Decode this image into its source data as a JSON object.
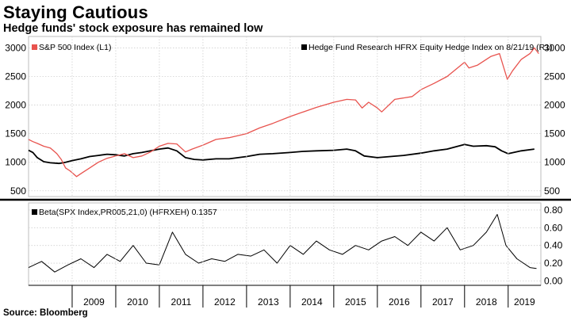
{
  "header": {
    "title": "Staying Cautious",
    "subtitle": "Hedge funds' stock exposure has remained low"
  },
  "footer": {
    "source": "Source: Bloomberg"
  },
  "colors": {
    "hfrx": "#000000",
    "sp500": "#e8534e",
    "grid": "#cfcfcf",
    "divider": "#000000"
  },
  "chart_data": [
    {
      "type": "line",
      "title": "",
      "legend_placement": "top-left",
      "x_tick_labels": [
        "2009",
        "2010",
        "2011",
        "2012",
        "2013",
        "2014",
        "2015",
        "2016",
        "2017",
        "2018",
        "2019"
      ],
      "xlim": [
        2008.0,
        2019.75
      ],
      "left_axis": {
        "ticks": [
          500,
          1000,
          1500,
          2000,
          2500,
          3000
        ],
        "ylim": [
          400,
          3200
        ]
      },
      "right_axis": {
        "ticks": [
          500,
          1000,
          1500,
          2000,
          2500,
          3000
        ],
        "ylim": [
          400,
          3200
        ]
      },
      "grid": true,
      "series": [
        {
          "name": "Hedge Fund Research HFRX Equity Hedge Index on 8/21/19 (R1)",
          "axis": "right",
          "color": "#000000",
          "x": [
            2008.0,
            2008.1,
            2008.2,
            2008.35,
            2008.5,
            2008.7,
            2008.85,
            2009.0,
            2009.2,
            2009.4,
            2009.6,
            2009.8,
            2010.0,
            2010.2,
            2010.4,
            2010.6,
            2010.8,
            2011.0,
            2011.2,
            2011.4,
            2011.6,
            2011.8,
            2012.0,
            2012.3,
            2012.6,
            2013.0,
            2013.3,
            2013.6,
            2014.0,
            2014.3,
            2014.6,
            2015.0,
            2015.3,
            2015.5,
            2015.7,
            2016.0,
            2016.3,
            2016.6,
            2017.0,
            2017.3,
            2017.6,
            2018.0,
            2018.2,
            2018.5,
            2018.7,
            2018.85,
            2019.0,
            2019.3,
            2019.6
          ],
          "y": [
            1210,
            1170,
            1080,
            1010,
            990,
            980,
            1000,
            1030,
            1060,
            1100,
            1120,
            1140,
            1130,
            1110,
            1150,
            1170,
            1200,
            1230,
            1250,
            1200,
            1080,
            1050,
            1040,
            1060,
            1060,
            1100,
            1140,
            1150,
            1170,
            1190,
            1200,
            1210,
            1230,
            1200,
            1110,
            1080,
            1100,
            1120,
            1160,
            1200,
            1230,
            1310,
            1280,
            1290,
            1270,
            1200,
            1150,
            1200,
            1230
          ]
        },
        {
          "name": "S&P 500 Index (L1)",
          "axis": "left",
          "color": "#e8534e",
          "x": [
            2008.0,
            2008.1,
            2008.2,
            2008.35,
            2008.5,
            2008.65,
            2008.75,
            2008.85,
            2008.95,
            2009.1,
            2009.2,
            2009.4,
            2009.6,
            2009.8,
            2010.0,
            2010.2,
            2010.4,
            2010.6,
            2010.8,
            2011.0,
            2011.2,
            2011.4,
            2011.6,
            2011.75,
            2012.0,
            2012.3,
            2012.6,
            2013.0,
            2013.3,
            2013.6,
            2014.0,
            2014.3,
            2014.6,
            2015.0,
            2015.3,
            2015.5,
            2015.65,
            2015.8,
            2016.0,
            2016.1,
            2016.4,
            2016.8,
            2017.0,
            2017.3,
            2017.6,
            2018.0,
            2018.1,
            2018.3,
            2018.6,
            2018.8,
            2018.98,
            2019.1,
            2019.3,
            2019.5,
            2019.6,
            2019.7
          ],
          "y": [
            1400,
            1360,
            1330,
            1280,
            1250,
            1150,
            1050,
            900,
            850,
            750,
            800,
            900,
            1000,
            1070,
            1110,
            1150,
            1080,
            1110,
            1180,
            1280,
            1330,
            1320,
            1180,
            1230,
            1300,
            1400,
            1430,
            1500,
            1600,
            1680,
            1800,
            1880,
            1960,
            2050,
            2100,
            2090,
            1950,
            2050,
            1950,
            1880,
            2100,
            2150,
            2270,
            2380,
            2500,
            2750,
            2650,
            2700,
            2850,
            2900,
            2450,
            2600,
            2800,
            2900,
            3000,
            2900
          ]
        }
      ]
    },
    {
      "type": "line",
      "title": "",
      "legend_placement": "top-left",
      "x_tick_labels": [
        "2009",
        "2010",
        "2011",
        "2012",
        "2013",
        "2014",
        "2015",
        "2016",
        "2017",
        "2018",
        "2019"
      ],
      "xlim": [
        2008.0,
        2019.75
      ],
      "right_axis": {
        "ticks": [
          0.0,
          0.2,
          0.4,
          0.6,
          0.8
        ],
        "tick_labels": [
          "0.00",
          "0.20",
          "0.40",
          "0.60",
          "0.80"
        ],
        "ylim": [
          -0.05,
          0.88
        ]
      },
      "grid": true,
      "series": [
        {
          "name": "Beta(SPX Index,PR005,21,0) (HFRXEH) 0.1357",
          "axis": "right",
          "color": "#000000",
          "x": [
            2008.0,
            2008.3,
            2008.6,
            2008.9,
            2009.2,
            2009.5,
            2009.8,
            2010.1,
            2010.4,
            2010.7,
            2011.0,
            2011.3,
            2011.6,
            2011.9,
            2012.2,
            2012.5,
            2012.8,
            2013.1,
            2013.4,
            2013.7,
            2014.0,
            2014.3,
            2014.6,
            2014.9,
            2015.2,
            2015.5,
            2015.8,
            2016.1,
            2016.4,
            2016.7,
            2017.0,
            2017.3,
            2017.6,
            2017.9,
            2018.2,
            2018.5,
            2018.75,
            2018.95,
            2019.2,
            2019.5,
            2019.65
          ],
          "y": [
            0.15,
            0.22,
            0.1,
            0.18,
            0.25,
            0.15,
            0.3,
            0.22,
            0.4,
            0.2,
            0.18,
            0.55,
            0.3,
            0.2,
            0.25,
            0.22,
            0.3,
            0.28,
            0.35,
            0.2,
            0.4,
            0.3,
            0.45,
            0.35,
            0.3,
            0.4,
            0.35,
            0.45,
            0.5,
            0.4,
            0.55,
            0.45,
            0.6,
            0.35,
            0.4,
            0.55,
            0.75,
            0.4,
            0.25,
            0.15,
            0.14
          ]
        }
      ]
    }
  ]
}
